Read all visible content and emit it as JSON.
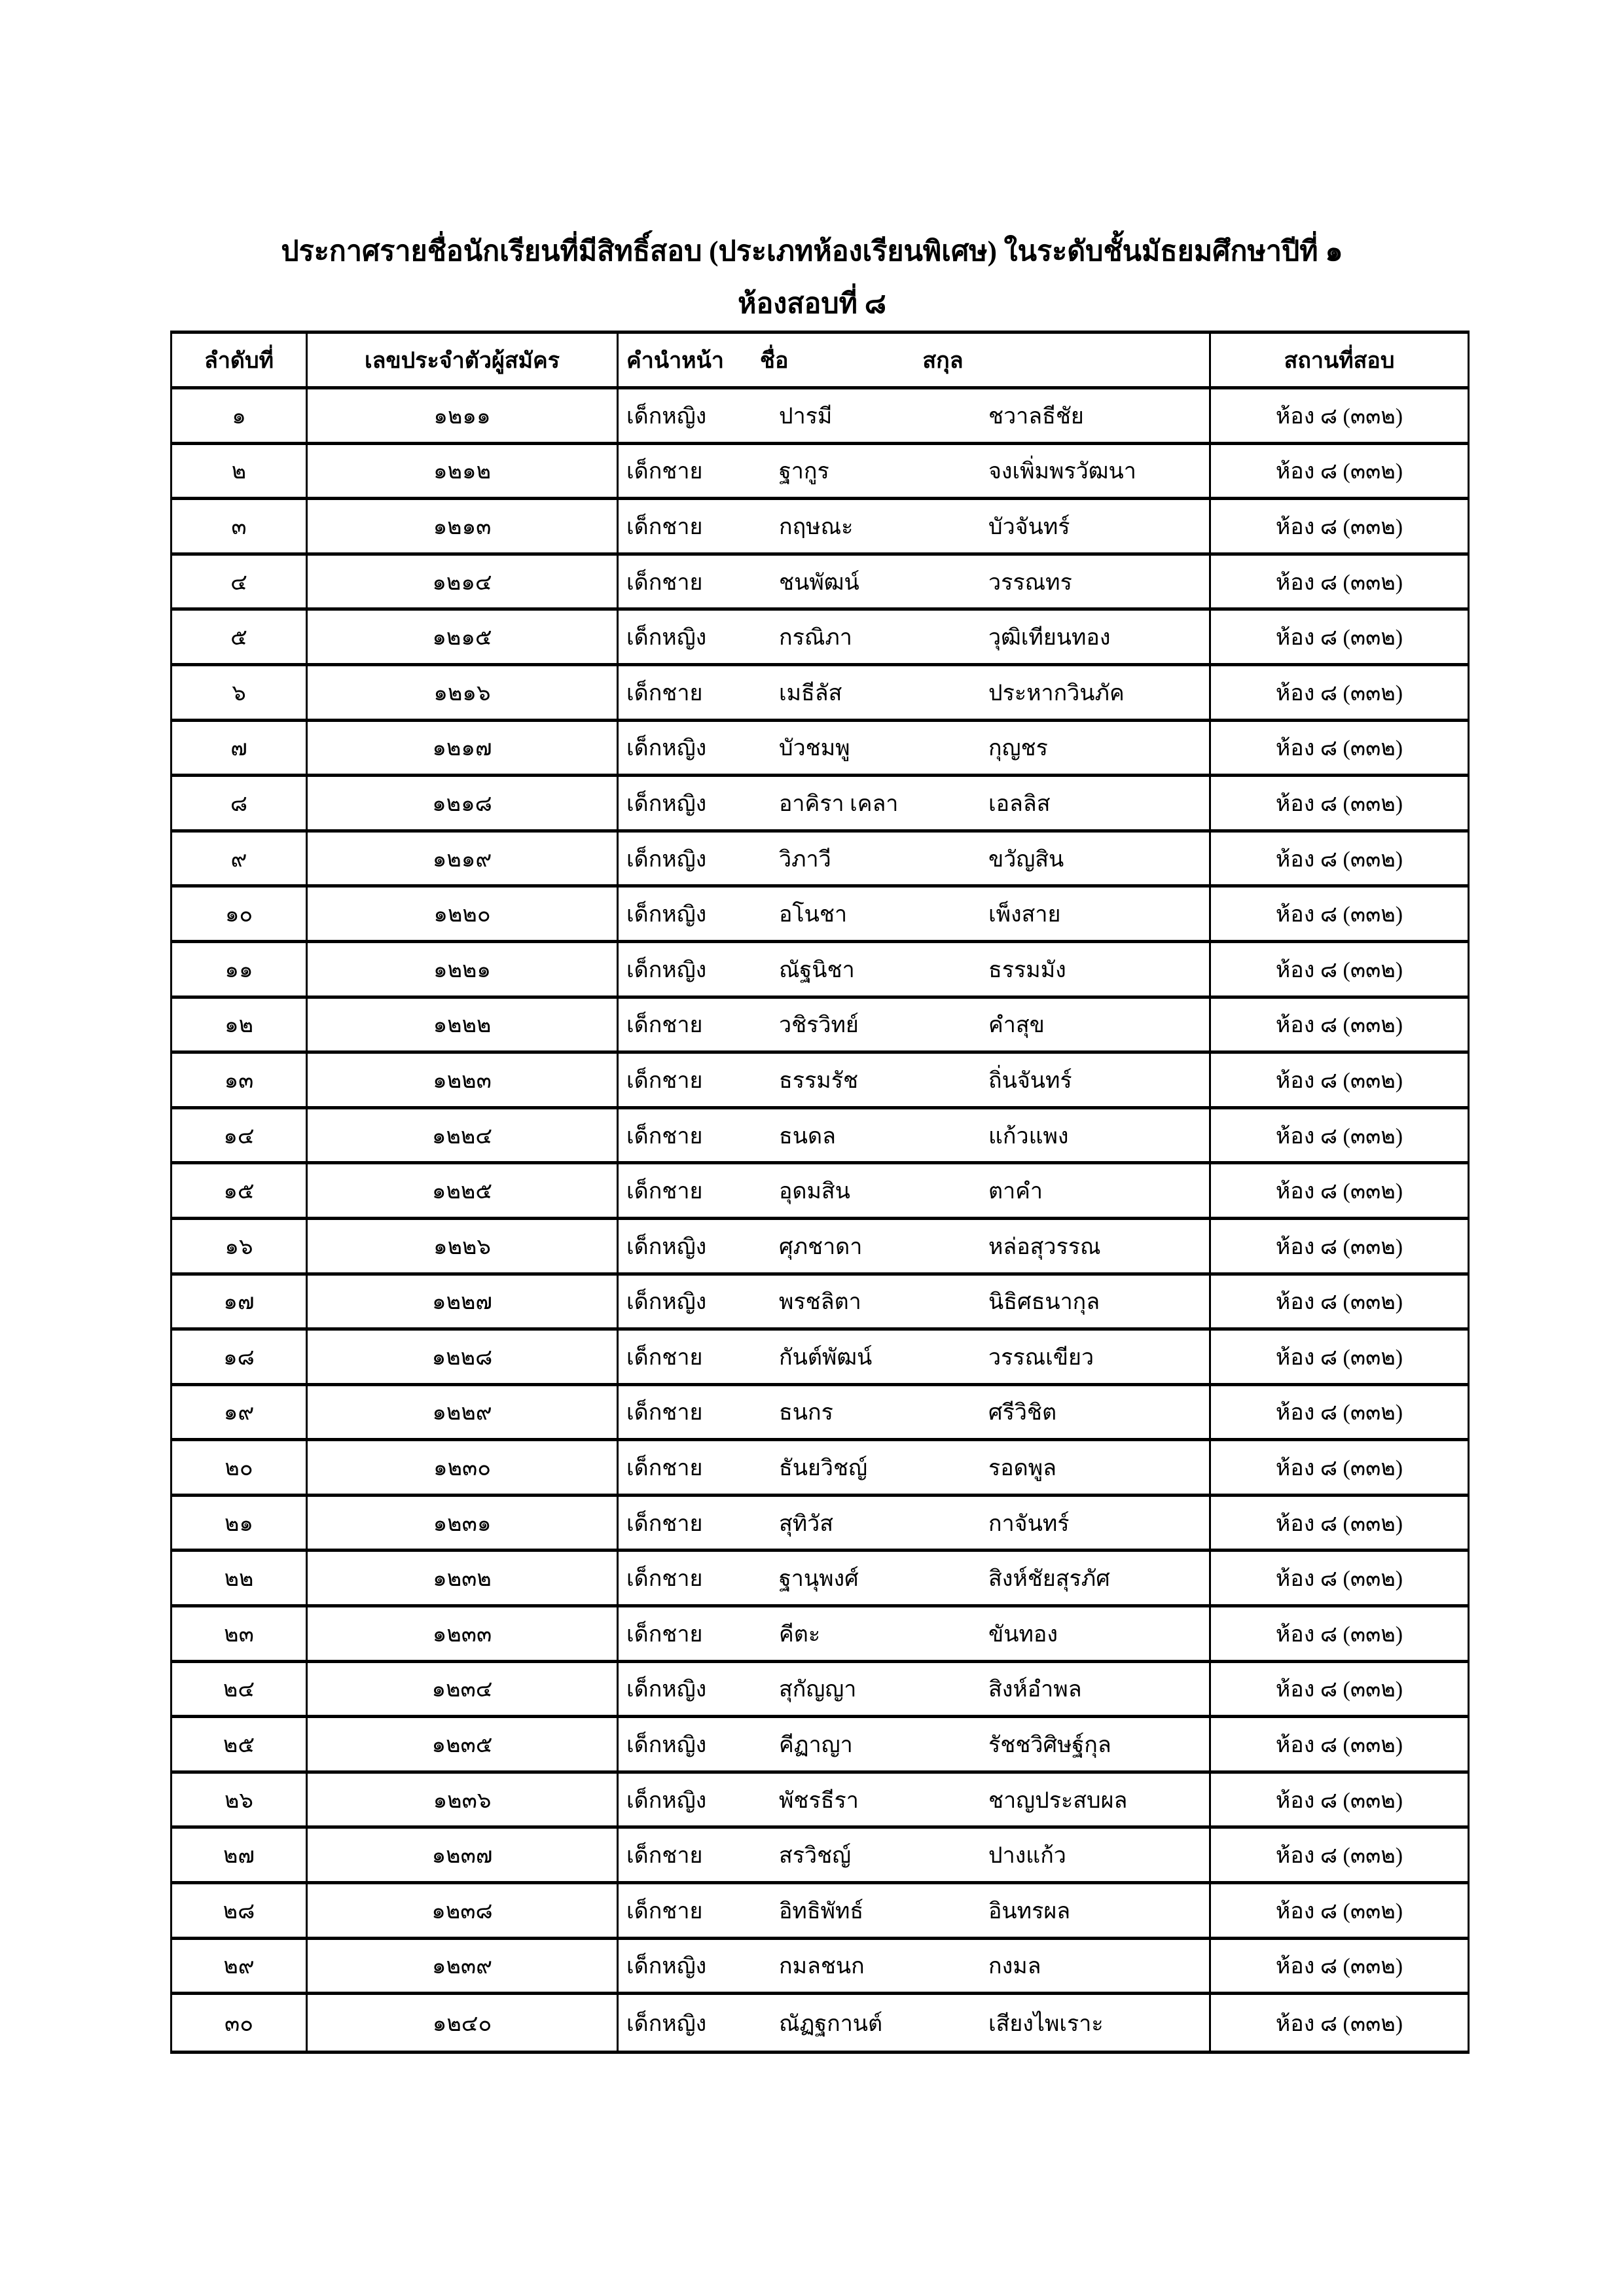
{
  "title": {
    "line1": "ประกาศรายชื่อนักเรียนที่มีสิทธิ์สอบ (ประเภทห้องเรียนพิเศษ) ในระดับชั้นมัธยมศึกษาปีที่ ๑",
    "line2": "ห้องสอบที่ ๘"
  },
  "table": {
    "headers": {
      "no": "ลำดับที่",
      "applicant_id": "เลขประจำตัวผู้สมัคร",
      "prefix": "คำนำหน้า",
      "first_name": "ชื่อ",
      "surname": "สกุล",
      "location": "สถานที่สอบ"
    },
    "rows": [
      {
        "no": "๑",
        "applicant_id": "๑๒๑๑",
        "prefix": "เด็กหญิง",
        "first_name": "ปารมี",
        "surname": "ชวาลธีชัย",
        "location": "ห้อง ๘ (๓๓๒)"
      },
      {
        "no": "๒",
        "applicant_id": "๑๒๑๒",
        "prefix": "เด็กชาย",
        "first_name": "ฐากูร",
        "surname": "จงเพิ่มพรวัฒนา",
        "location": "ห้อง ๘ (๓๓๒)"
      },
      {
        "no": "๓",
        "applicant_id": "๑๒๑๓",
        "prefix": "เด็กชาย",
        "first_name": "กฤษณะ",
        "surname": "บัวจันทร์",
        "location": "ห้อง ๘ (๓๓๒)"
      },
      {
        "no": "๔",
        "applicant_id": "๑๒๑๔",
        "prefix": "เด็กชาย",
        "first_name": "ชนพัฒน์",
        "surname": "วรรณทร",
        "location": "ห้อง ๘ (๓๓๒)"
      },
      {
        "no": "๕",
        "applicant_id": "๑๒๑๕",
        "prefix": "เด็กหญิง",
        "first_name": "กรณิภา",
        "surname": "วุฒิเทียนทอง",
        "location": "ห้อง ๘ (๓๓๒)"
      },
      {
        "no": "๖",
        "applicant_id": "๑๒๑๖",
        "prefix": "เด็กชาย",
        "first_name": "เมธีลัส",
        "surname": "ประหากวินภัค",
        "location": "ห้อง ๘ (๓๓๒)"
      },
      {
        "no": "๗",
        "applicant_id": "๑๒๑๗",
        "prefix": "เด็กหญิง",
        "first_name": "บัวชมพู",
        "surname": "กุญชร",
        "location": "ห้อง ๘ (๓๓๒)"
      },
      {
        "no": "๘",
        "applicant_id": "๑๒๑๘",
        "prefix": "เด็กหญิง",
        "first_name": "อาคิรา เคลา",
        "surname": "เอลลิส",
        "location": "ห้อง ๘ (๓๓๒)"
      },
      {
        "no": "๙",
        "applicant_id": "๑๒๑๙",
        "prefix": "เด็กหญิง",
        "first_name": "วิภาวี",
        "surname": "ขวัญสิน",
        "location": "ห้อง ๘ (๓๓๒)"
      },
      {
        "no": "๑๐",
        "applicant_id": "๑๒๒๐",
        "prefix": "เด็กหญิง",
        "first_name": "อโนชา",
        "surname": "เพ็งสาย",
        "location": "ห้อง ๘ (๓๓๒)"
      },
      {
        "no": "๑๑",
        "applicant_id": "๑๒๒๑",
        "prefix": "เด็กหญิง",
        "first_name": "ณัฐนิชา",
        "surname": "ธรรมมัง",
        "location": "ห้อง ๘ (๓๓๒)"
      },
      {
        "no": "๑๒",
        "applicant_id": "๑๒๒๒",
        "prefix": "เด็กชาย",
        "first_name": "วชิรวิทย์",
        "surname": "คำสุข",
        "location": "ห้อง ๘ (๓๓๒)"
      },
      {
        "no": "๑๓",
        "applicant_id": "๑๒๒๓",
        "prefix": "เด็กชาย",
        "first_name": "ธรรมรัช",
        "surname": "ถิ่นจันทร์",
        "location": "ห้อง ๘ (๓๓๒)"
      },
      {
        "no": "๑๔",
        "applicant_id": "๑๒๒๔",
        "prefix": "เด็กชาย",
        "first_name": "ธนดล",
        "surname": "แก้วแพง",
        "location": "ห้อง ๘ (๓๓๒)"
      },
      {
        "no": "๑๕",
        "applicant_id": "๑๒๒๕",
        "prefix": "เด็กชาย",
        "first_name": "อุดมสิน",
        "surname": "ตาคำ",
        "location": "ห้อง ๘ (๓๓๒)"
      },
      {
        "no": "๑๖",
        "applicant_id": "๑๒๒๖",
        "prefix": "เด็กหญิง",
        "first_name": "ศุภชาดา",
        "surname": "หล่อสุวรรณ",
        "location": "ห้อง ๘ (๓๓๒)"
      },
      {
        "no": "๑๗",
        "applicant_id": "๑๒๒๗",
        "prefix": "เด็กหญิง",
        "first_name": "พรชลิตา",
        "surname": "นิธิศธนากุล",
        "location": "ห้อง ๘ (๓๓๒)"
      },
      {
        "no": "๑๘",
        "applicant_id": "๑๒๒๘",
        "prefix": "เด็กชาย",
        "first_name": "กันต์พัฒน์",
        "surname": "วรรณเขียว",
        "location": "ห้อง ๘ (๓๓๒)"
      },
      {
        "no": "๑๙",
        "applicant_id": "๑๒๒๙",
        "prefix": "เด็กชาย",
        "first_name": "ธนกร",
        "surname": "ศรีวิชิต",
        "location": "ห้อง ๘ (๓๓๒)"
      },
      {
        "no": "๒๐",
        "applicant_id": "๑๒๓๐",
        "prefix": "เด็กชาย",
        "first_name": "ธันยวิชญ์",
        "surname": "รอดพูล",
        "location": "ห้อง ๘ (๓๓๒)"
      },
      {
        "no": "๒๑",
        "applicant_id": "๑๒๓๑",
        "prefix": "เด็กชาย",
        "first_name": "สุทิวัส",
        "surname": "กาจันทร์",
        "location": "ห้อง ๘ (๓๓๒)"
      },
      {
        "no": "๒๒",
        "applicant_id": "๑๒๓๒",
        "prefix": "เด็กชาย",
        "first_name": "ฐานุพงศ์",
        "surname": "สิงห์ชัยสุรภัศ",
        "location": "ห้อง ๘ (๓๓๒)"
      },
      {
        "no": "๒๓",
        "applicant_id": "๑๒๓๓",
        "prefix": "เด็กชาย",
        "first_name": "คีตะ",
        "surname": "ขันทอง",
        "location": "ห้อง ๘ (๓๓๒)"
      },
      {
        "no": "๒๔",
        "applicant_id": "๑๒๓๔",
        "prefix": "เด็กหญิง",
        "first_name": "สุกัญญา",
        "surname": "สิงห์อำพล",
        "location": "ห้อง ๘ (๓๓๒)"
      },
      {
        "no": "๒๕",
        "applicant_id": "๑๒๓๕",
        "prefix": "เด็กหญิง",
        "first_name": "คีฏาญา",
        "surname": "รัชชวิศิษฐ์กุล",
        "location": "ห้อง ๘ (๓๓๒)"
      },
      {
        "no": "๒๖",
        "applicant_id": "๑๒๓๖",
        "prefix": "เด็กหญิง",
        "first_name": "พัชรธีรา",
        "surname": "ชาญประสบผล",
        "location": "ห้อง ๘ (๓๓๒)"
      },
      {
        "no": "๒๗",
        "applicant_id": "๑๒๓๗",
        "prefix": "เด็กชาย",
        "first_name": "สรวิชญ์",
        "surname": "ปางแก้ว",
        "location": "ห้อง ๘ (๓๓๒)"
      },
      {
        "no": "๒๘",
        "applicant_id": "๑๒๓๘",
        "prefix": "เด็กชาย",
        "first_name": "อิทธิพัทธ์",
        "surname": "อินทรผล",
        "location": "ห้อง ๘ (๓๓๒)"
      },
      {
        "no": "๒๙",
        "applicant_id": "๑๒๓๙",
        "prefix": "เด็กหญิง",
        "first_name": "กมลชนก",
        "surname": "กงมล",
        "location": "ห้อง ๘ (๓๓๒)"
      },
      {
        "no": "๓๐",
        "applicant_id": "๑๒๔๐",
        "prefix": "เด็กหญิง",
        "first_name": "ณัฏฐกานต์",
        "surname": "เสียงไพเราะ",
        "location": "ห้อง ๘ (๓๓๒)"
      }
    ]
  }
}
